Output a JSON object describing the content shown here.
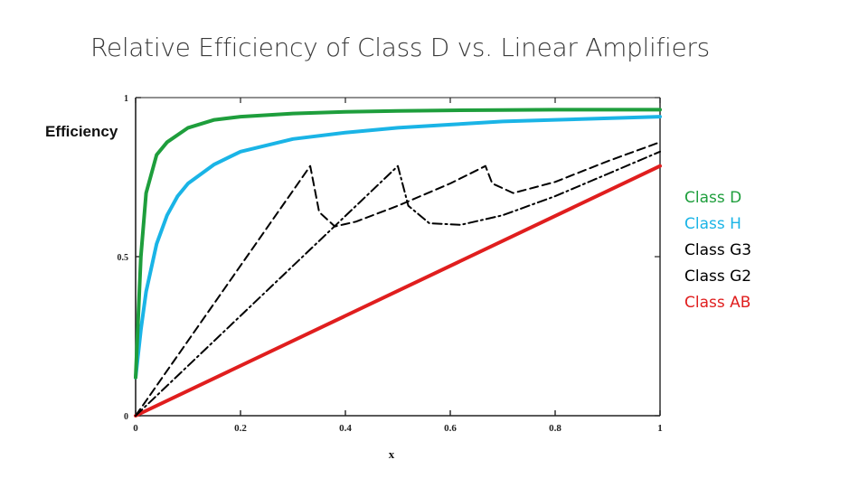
{
  "slide": {
    "title": "Relative Efficiency of Class D vs. Linear Amplifiers"
  },
  "chart_data": {
    "type": "line",
    "ylabel": "Efficiency",
    "xlabel": "x",
    "xlim": [
      0,
      1
    ],
    "ylim": [
      0,
      1
    ],
    "x_ticks": [
      "0",
      "0.2",
      "0.4",
      "0.6",
      "0.8",
      "1"
    ],
    "y_ticks": [
      "0",
      "0.5",
      "1"
    ],
    "grid": false,
    "legend_position": "right",
    "series": [
      {
        "name": "Class D",
        "color": "#1e9e3c",
        "stroke": "solid",
        "x": [
          0,
          0.01,
          0.02,
          0.04,
          0.06,
          0.1,
          0.15,
          0.2,
          0.3,
          0.4,
          0.5,
          0.6,
          0.7,
          0.8,
          0.9,
          1.0
        ],
        "y": [
          0.12,
          0.5,
          0.7,
          0.82,
          0.86,
          0.905,
          0.93,
          0.94,
          0.95,
          0.955,
          0.958,
          0.96,
          0.961,
          0.962,
          0.962,
          0.962
        ]
      },
      {
        "name": "Class H",
        "color": "#1ab4e6",
        "stroke": "solid",
        "x": [
          0,
          0.01,
          0.02,
          0.04,
          0.06,
          0.08,
          0.1,
          0.15,
          0.2,
          0.3,
          0.4,
          0.5,
          0.6,
          0.7,
          0.8,
          0.9,
          1.0
        ],
        "y": [
          0.12,
          0.27,
          0.39,
          0.54,
          0.63,
          0.69,
          0.73,
          0.79,
          0.83,
          0.87,
          0.89,
          0.905,
          0.915,
          0.925,
          0.93,
          0.935,
          0.94
        ]
      },
      {
        "name": "Class G3",
        "color": "#000000",
        "stroke": "dashed",
        "x": [
          0,
          0.333,
          0.35,
          0.38,
          0.42,
          0.5,
          0.6,
          0.667,
          0.68,
          0.72,
          0.8,
          0.9,
          1.0
        ],
        "y": [
          0,
          0.785,
          0.64,
          0.595,
          0.61,
          0.66,
          0.73,
          0.785,
          0.73,
          0.7,
          0.735,
          0.8,
          0.86
        ]
      },
      {
        "name": "Class G2",
        "color": "#000000",
        "stroke": "dashdot",
        "x": [
          0,
          0.5,
          0.52,
          0.56,
          0.62,
          0.7,
          0.8,
          0.9,
          1.0
        ],
        "y": [
          0,
          0.785,
          0.66,
          0.605,
          0.6,
          0.63,
          0.69,
          0.76,
          0.83
        ]
      },
      {
        "name": "Class AB",
        "color": "#e01e1e",
        "stroke": "solid",
        "x": [
          0,
          1.0
        ],
        "y": [
          0,
          0.785
        ]
      }
    ]
  }
}
